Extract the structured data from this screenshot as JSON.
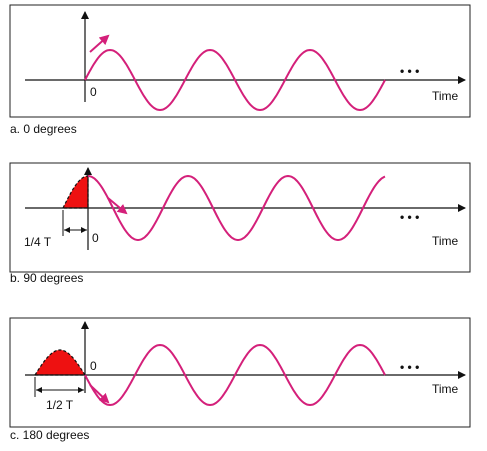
{
  "panels": [
    {
      "origin_label": "0",
      "axis_label": "Time",
      "ellipsis": "• • •",
      "caption": "a. 0 degrees"
    },
    {
      "origin_label": "0",
      "axis_label": "Time",
      "ellipsis": "• • •",
      "period_label": "1/4 T",
      "caption": "b. 90 degrees"
    },
    {
      "origin_label": "0",
      "axis_label": "Time",
      "ellipsis": "• • •",
      "period_label": "1/2 T",
      "caption": "c. 180 degrees"
    }
  ]
}
